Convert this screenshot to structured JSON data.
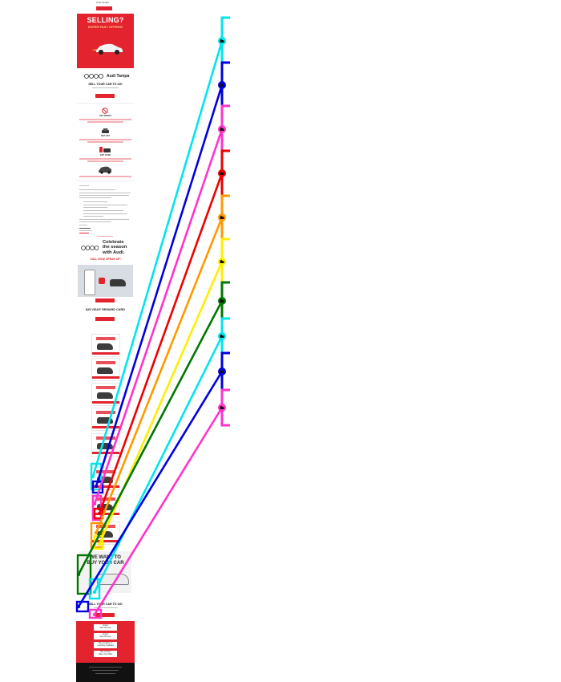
{
  "header": {
    "brand": "Audi Tampa"
  },
  "hero": {
    "title": "SELLING?",
    "subtitle": "SUPER FAST OFFERS!"
  },
  "logo": {
    "name": "Audi Tampa"
  },
  "sell_section": {
    "title": "SELL YOUR CAR TO US!"
  },
  "steps": [
    {
      "label": "GET READY"
    },
    {
      "label": "GET SET"
    },
    {
      "label": "GET CASH"
    }
  ],
  "celebrate": {
    "lines": [
      "Celebrate",
      "the season",
      "with Audi."
    ],
    "cta": "CALL NOW. SPEAK UP!"
  },
  "visa": {
    "text": "$25 VISA® REWARD CARD"
  },
  "buy_banner": {
    "lines": [
      "WE WANT TO",
      "BUY YOUR CAR"
    ]
  },
  "sell_again": {
    "title": "SELL YOUR CAR TO US!"
  },
  "footer": {
    "buttons": [
      {
        "lines": [
          "Email",
          "Jack Hornsey"
        ]
      },
      {
        "lines": [
          "Email",
          "Jack Hornsey"
        ]
      },
      {
        "lines": [
          "Want Insights on",
          "Lead Buy Qualified"
        ]
      },
      {
        "lines": [
          "Buy A Used",
          "Value Your Offer"
        ]
      }
    ]
  },
  "colors": {
    "brand_red": "#e3242f",
    "annotations": [
      "#00e5ee",
      "#0000dd",
      "#ff33cc",
      "#ee0000",
      "#ff9900",
      "#ffee00",
      "#007700",
      "#00e5ee",
      "#0000dd",
      "#ff33cc"
    ]
  },
  "annotation_icons": [
    "hand-icon"
  ]
}
